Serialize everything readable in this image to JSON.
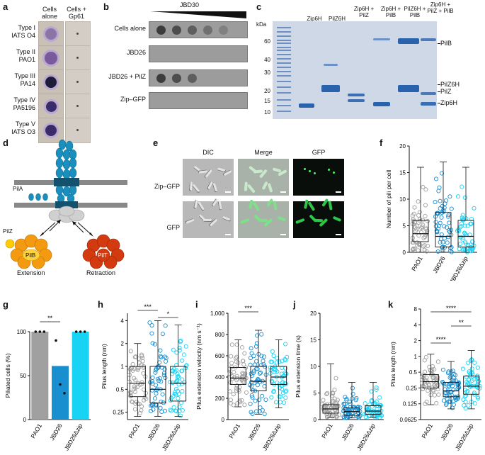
{
  "panels": {
    "a": {
      "label": "a",
      "col1": "Cells alone",
      "col2": "Cells + Gp61",
      "rows": [
        {
          "type": "Type I",
          "strain": "IATS O4"
        },
        {
          "type": "Type II",
          "strain": "PAO1"
        },
        {
          "type": "Type III",
          "strain": "PA14"
        },
        {
          "type": "Type IV",
          "strain": "PA5196"
        },
        {
          "type": "Type V",
          "strain": "IATS O3"
        }
      ]
    },
    "b": {
      "label": "b",
      "title": "JBD30",
      "rows": [
        "Cells alone",
        "JBD26",
        "JBD26 + PilZ",
        "Zip–GFP"
      ]
    },
    "c": {
      "label": "c",
      "lanes": [
        "Zip6H",
        "PilZ6H",
        "Zip6H + PilZ",
        "Zip6H + PilB",
        "PilZ6H + PilB",
        "Zip6H + PilZ + PilB"
      ],
      "kda": "kDa",
      "markers": [
        "60",
        "40",
        "30",
        "20",
        "15",
        "10"
      ],
      "band_labels": [
        "PilB",
        "PilZ6H",
        "PilZ",
        "Zip6H"
      ]
    },
    "d": {
      "label": "d",
      "pila": "PilA",
      "pilz": "PilZ",
      "pilb": "PilB",
      "pilt": "PilT",
      "extension": "Extension",
      "retraction": "Retraction"
    },
    "e": {
      "label": "e",
      "cols": [
        "DIC",
        "Merge",
        "GFP"
      ],
      "rows": [
        "Zip–GFP",
        "GFP"
      ]
    },
    "f": {
      "label": "f",
      "ylabel": "Number of pili per cell",
      "yticks": [
        "0",
        "5",
        "10",
        "15",
        "20"
      ],
      "categories": [
        "PAO1",
        "JBD26",
        "JBD26Δzip"
      ]
    },
    "g": {
      "label": "g",
      "ylabel": "Piliated cells (%)",
      "yticks": [
        "0",
        "50",
        "100"
      ],
      "categories": [
        "PAO1",
        "JBD26",
        "JBD26Δzip"
      ],
      "sig": "**"
    },
    "h": {
      "label": "h",
      "ylabel": "Pilus length (nm)",
      "yticks": [
        "0.25",
        "0.5",
        "1",
        "2",
        "4"
      ],
      "categories": [
        "PAO1",
        "JBD26",
        "JBD26Δzip"
      ],
      "sig1": "***",
      "sig2": "*"
    },
    "i": {
      "label": "i",
      "ylabel": "Pilus extension velocity (nm s⁻¹)",
      "yticks": [
        "0",
        "200",
        "400",
        "600",
        "800",
        "1,000"
      ],
      "categories": [
        "PAO1",
        "JBD26",
        "JBD26Δzip"
      ],
      "sig": "***"
    },
    "j": {
      "label": "j",
      "ylabel": "Pilus extension time (s)",
      "yticks": [
        "0",
        "5",
        "10",
        "15",
        "20"
      ],
      "categories": [
        "PAO1",
        "JBD26",
        "JBD26Δzip"
      ]
    },
    "k": {
      "label": "k",
      "ylabel": "Pilus length (nm)",
      "yticks": [
        "0.0625",
        "0.125",
        "0.25",
        "0.5",
        "1",
        "2",
        "4",
        "8"
      ],
      "categories": [
        "PAO1",
        "JBD26",
        "JBD26Δzip"
      ],
      "sig1": "****",
      "sig2": "**",
      "sig3": "****"
    }
  },
  "colors": {
    "grey": "#a0a0a0",
    "blue": "#1a8fd0",
    "cyan": "#19d3f5",
    "pilb": "#f39a10",
    "pilt": "#d43a10"
  },
  "chart_data": [
    {
      "type": "scatter",
      "panel": "f",
      "categories": [
        "PAO1",
        "JBD26",
        "JBD26Δzip"
      ],
      "ylim": [
        0,
        20
      ],
      "median": [
        3.5,
        3,
        3
      ],
      "q1": [
        2,
        1,
        1
      ],
      "q3": [
        6,
        7.5,
        6
      ],
      "min": [
        0,
        0,
        0
      ],
      "max": [
        16,
        17,
        16
      ]
    },
    {
      "type": "bar",
      "panel": "g",
      "categories": [
        "PAO1",
        "JBD26",
        "JBD26Δzip"
      ],
      "values": [
        100,
        61,
        100
      ],
      "ylim": [
        0,
        100
      ],
      "points": [
        [
          100,
          100,
          100
        ],
        [
          90,
          40,
          30
        ],
        [
          100,
          100,
          100
        ]
      ]
    },
    {
      "type": "scatter",
      "panel": "h",
      "categories": [
        "PAO1",
        "JBD26",
        "JBD26Δzip"
      ],
      "ylim": [
        0.2,
        5
      ],
      "log": true,
      "median": [
        0.6,
        0.5,
        0.6
      ],
      "q1": [
        0.4,
        0.33,
        0.35
      ],
      "q3": [
        1.0,
        1.0,
        1.0
      ],
      "min": [
        0.22,
        0.22,
        0.22
      ],
      "max": [
        2.0,
        4.0,
        3.5
      ]
    },
    {
      "type": "scatter",
      "panel": "i",
      "categories": [
        "PAO1",
        "JBD26",
        "JBD26Δzip"
      ],
      "ylim": [
        0,
        1000
      ],
      "median": [
        390,
        360,
        400
      ],
      "q1": [
        330,
        270,
        330
      ],
      "q3": [
        490,
        500,
        500
      ],
      "min": [
        120,
        50,
        110
      ],
      "max": [
        750,
        840,
        750
      ]
    },
    {
      "type": "scatter",
      "panel": "j",
      "categories": [
        "PAO1",
        "JBD26",
        "JBD26Δzip"
      ],
      "ylim": [
        0,
        20
      ],
      "median": [
        2,
        1.5,
        1.6
      ],
      "q1": [
        1.2,
        0.8,
        1
      ],
      "q3": [
        2.8,
        2.2,
        2.6
      ],
      "min": [
        0.4,
        0.3,
        0.4
      ],
      "max": [
        10.5,
        7,
        7
      ]
    },
    {
      "type": "scatter",
      "panel": "k",
      "categories": [
        "PAO1",
        "JBD26",
        "JBD26Δzip"
      ],
      "ylim": [
        0.0625,
        8
      ],
      "log": true,
      "median": [
        0.33,
        0.22,
        0.27
      ],
      "q1": [
        0.25,
        0.17,
        0.19
      ],
      "q3": [
        0.45,
        0.32,
        0.42
      ],
      "min": [
        0.12,
        0.1,
        0.1
      ],
      "max": [
        1.1,
        0.8,
        1.3
      ]
    }
  ]
}
